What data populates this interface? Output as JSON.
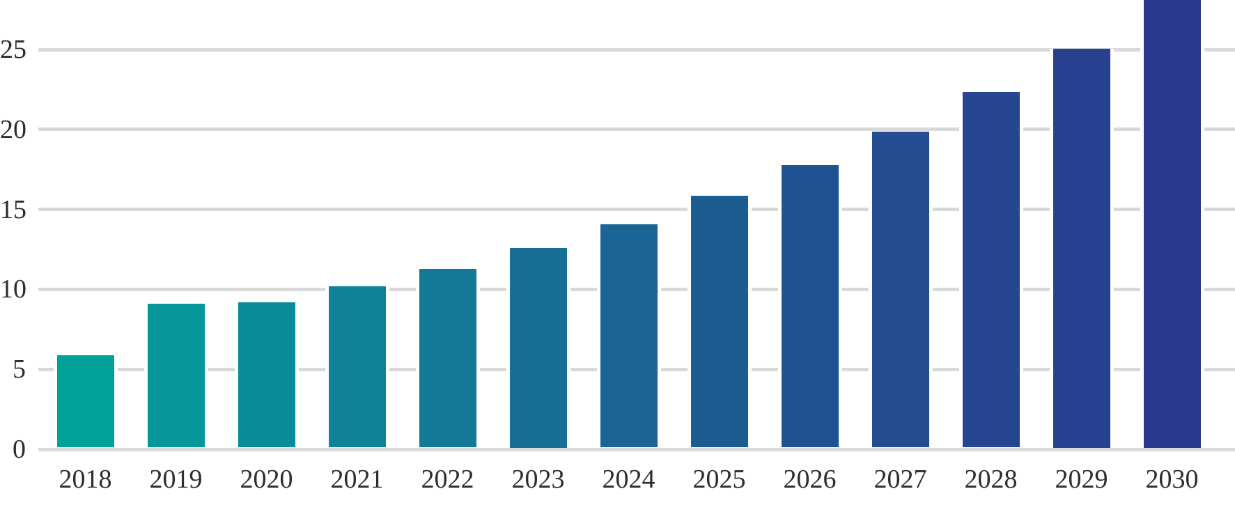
{
  "chart_data": {
    "type": "bar",
    "title": "",
    "xlabel": "",
    "ylabel": "",
    "categories": [
      "2018",
      "2019",
      "2020",
      "2021",
      "2022",
      "2023",
      "2024",
      "2025",
      "2026",
      "2027",
      "2028",
      "2029",
      "2030"
    ],
    "values": [
      5.8,
      9.0,
      9.1,
      10.1,
      11.2,
      12.5,
      14.0,
      15.8,
      17.7,
      19.8,
      22.3,
      25.0,
      28.2
    ],
    "bar_colors": [
      "#00A19A",
      "#059799",
      "#0A8D99",
      "#0F8298",
      "#147897",
      "#176F96",
      "#1A6595",
      "#1D5C93",
      "#205292",
      "#234C91",
      "#264691",
      "#284090",
      "#2B3A8F"
    ],
    "yticks": [
      0,
      5,
      10,
      15,
      20,
      25
    ],
    "ylim": [
      0,
      28.2
    ],
    "last_bar_clipped_at_top": true,
    "grid": true,
    "legend": "none",
    "gridline_color": "#d9d9d9",
    "tick_label_color": "#2d2d2d",
    "background_color": "#ffffff",
    "color_gradient": {
      "from": "#00A19A",
      "to": "#2B3A8F"
    }
  }
}
